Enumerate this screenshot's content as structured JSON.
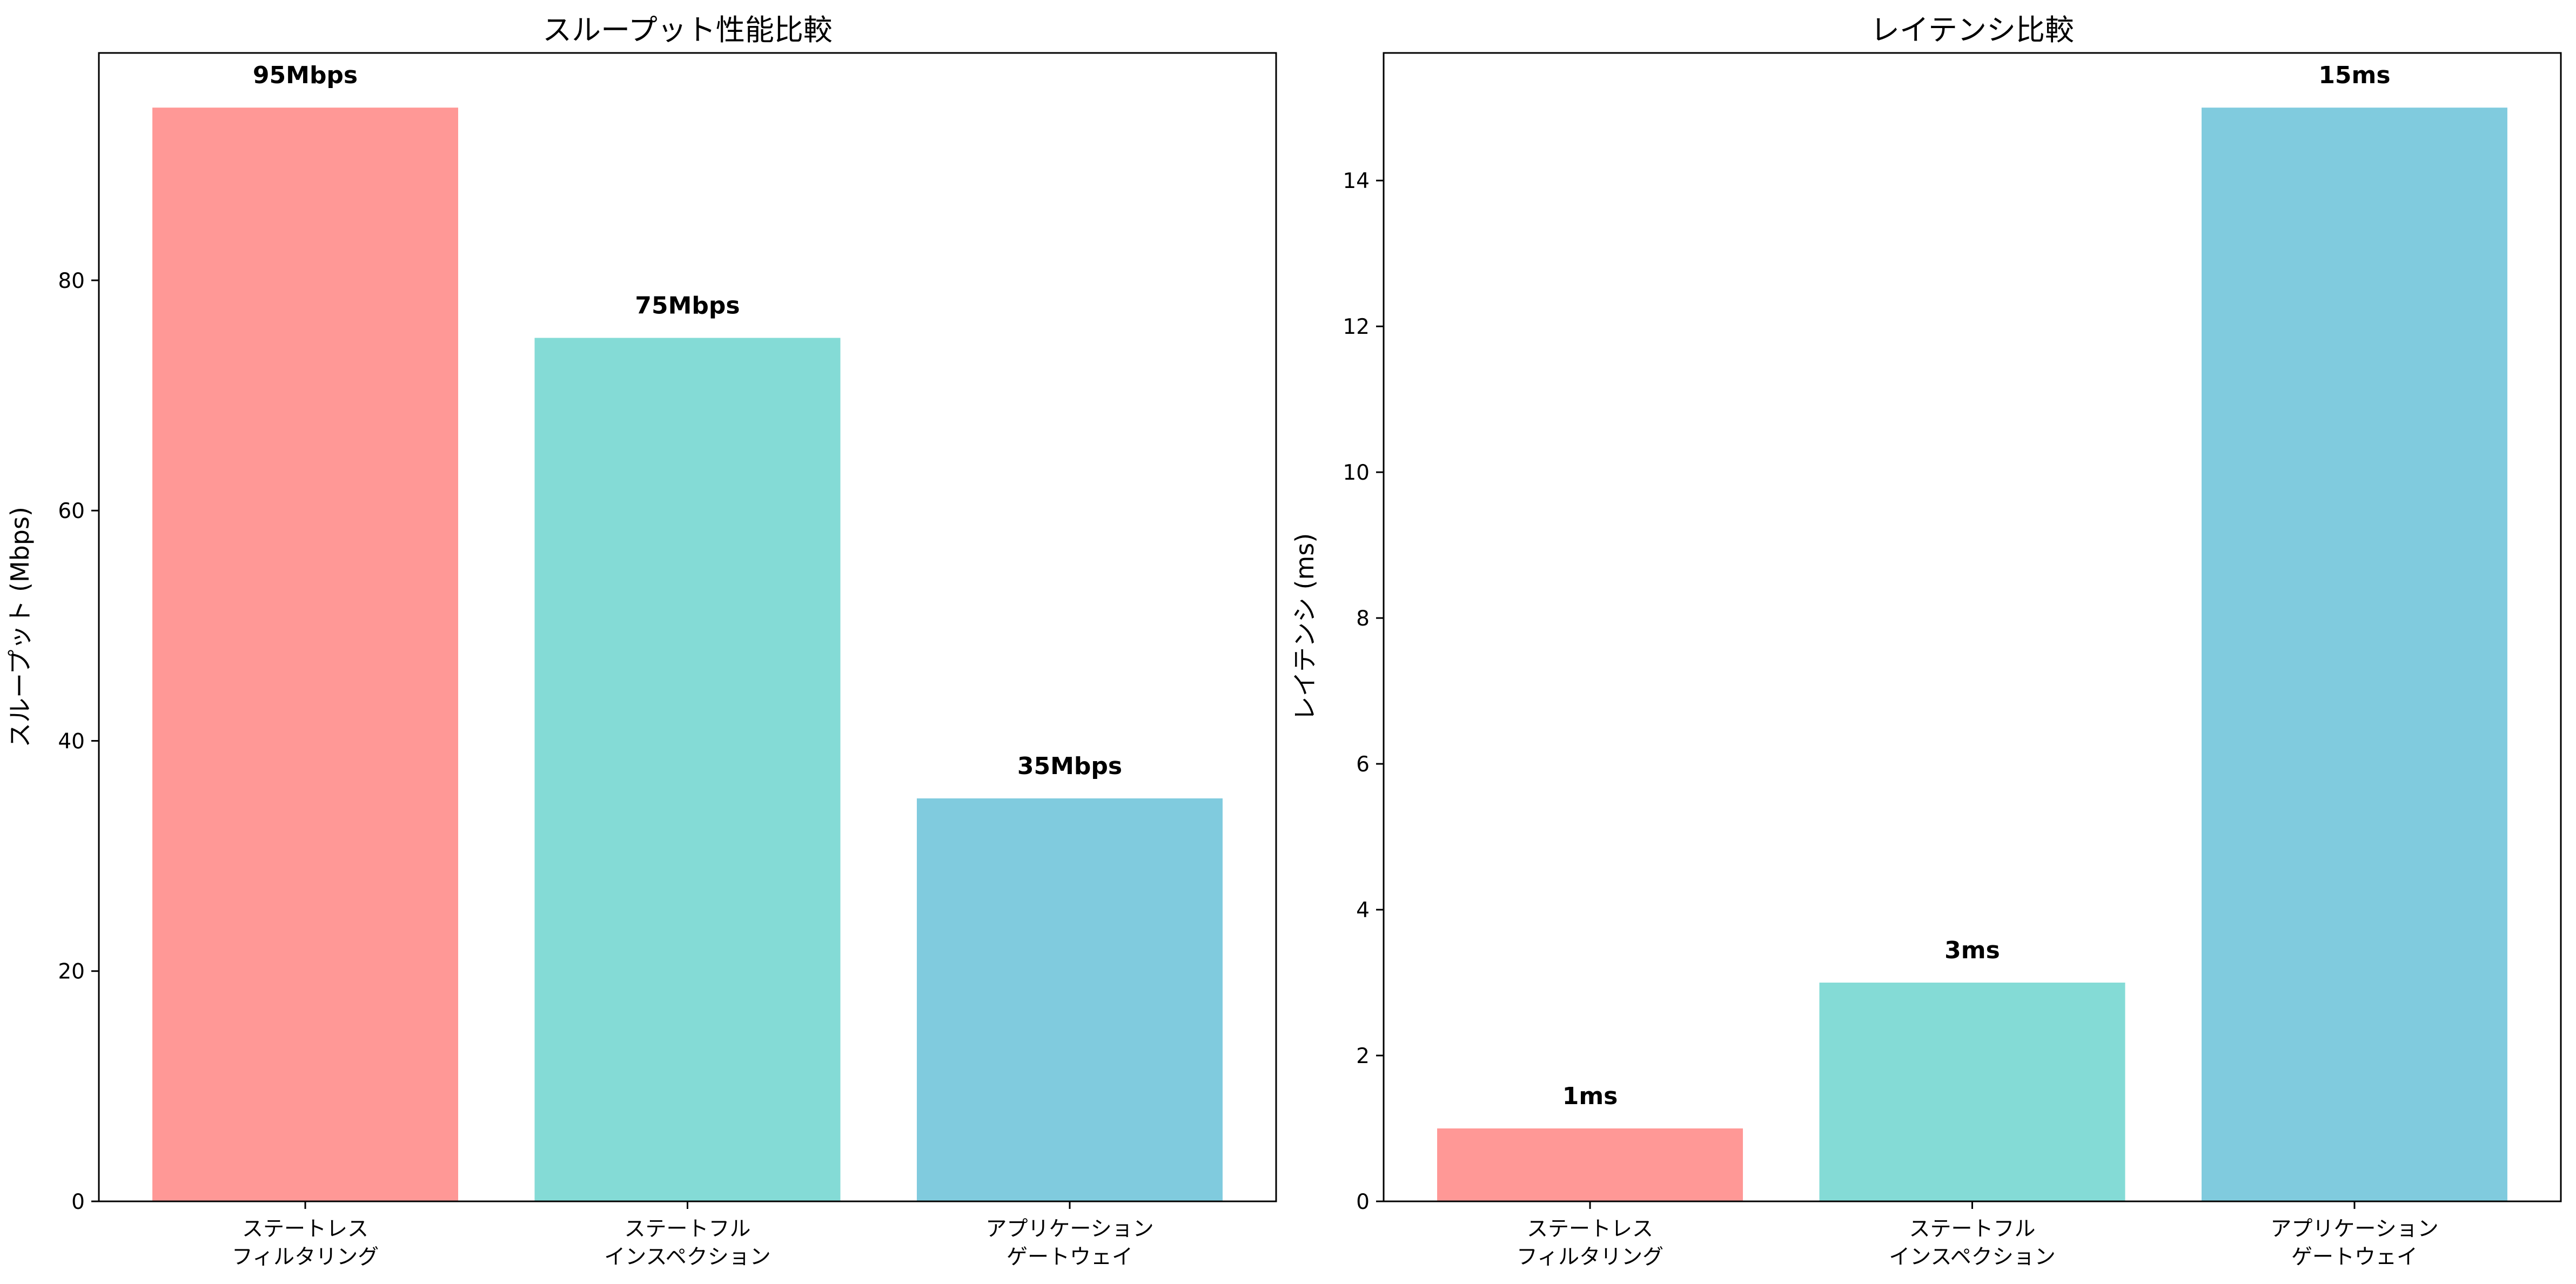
{
  "chart_data": [
    {
      "type": "bar",
      "title": "スループット性能比較",
      "xlabel": "",
      "ylabel": "スループット (Mbps)",
      "categories": [
        [
          "ステートレス",
          "フィルタリング"
        ],
        [
          "ステートフル",
          "インスペクション"
        ],
        [
          "アプリケーション",
          "ゲートウェイ"
        ]
      ],
      "values": [
        95,
        75,
        35
      ],
      "data_labels": [
        "95Mbps",
        "75Mbps",
        "35Mbps"
      ],
      "colors": [
        "#FF9896",
        "#84DBD6",
        "#80CBDE"
      ],
      "ylim": [
        0,
        99.75
      ],
      "yticks": [
        0,
        20,
        40,
        60,
        80
      ],
      "grid": false
    },
    {
      "type": "bar",
      "title": "レイテンシ比較",
      "xlabel": "",
      "ylabel": "レイテンシ (ms)",
      "categories": [
        [
          "ステートレス",
          "フィルタリング"
        ],
        [
          "ステートフル",
          "インスペクション"
        ],
        [
          "アプリケーション",
          "ゲートウェイ"
        ]
      ],
      "values": [
        1,
        3,
        15
      ],
      "data_labels": [
        "1ms",
        "3ms",
        "15ms"
      ],
      "colors": [
        "#FF9896",
        "#84DBD6",
        "#80CBDE"
      ],
      "ylim": [
        0,
        15.75
      ],
      "yticks": [
        0,
        2,
        4,
        6,
        8,
        10,
        12,
        14
      ],
      "grid": false
    }
  ]
}
